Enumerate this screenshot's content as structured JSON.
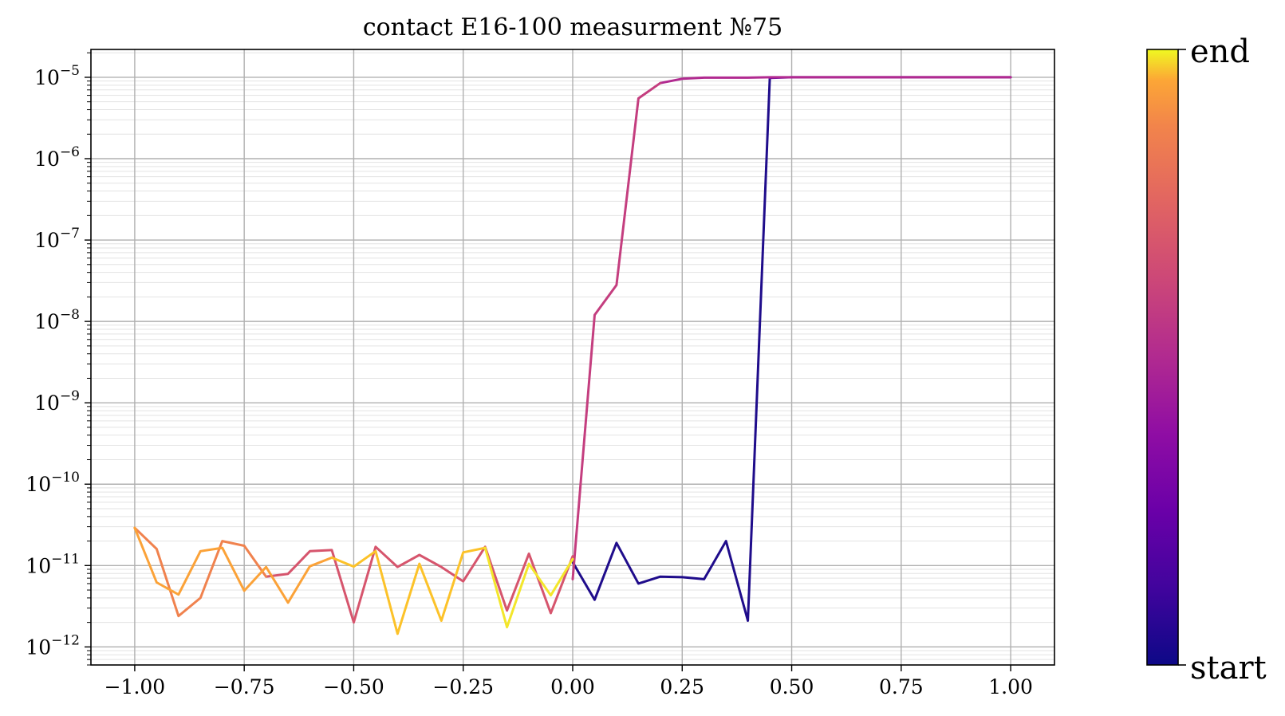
{
  "chart_data": {
    "type": "line",
    "title": "contact E16-100 measurment №75",
    "xlabel": "",
    "ylabel": "",
    "x_scale": "linear",
    "y_scale": "log",
    "xlim": [
      -1.1,
      1.1
    ],
    "ylim": [
      6e-13,
      2.2e-05
    ],
    "x_ticks": [
      -1.0,
      -0.75,
      -0.5,
      -0.25,
      0.0,
      0.25,
      0.5,
      0.75,
      1.0
    ],
    "x_tick_labels": [
      "−1.00",
      "−0.75",
      "−0.50",
      "−0.25",
      "0.00",
      "0.25",
      "0.50",
      "0.75",
      "1.00"
    ],
    "y_ticks": [
      {
        "value": 1e-12,
        "base": "10",
        "exp": "−12"
      },
      {
        "value": 1e-11,
        "base": "10",
        "exp": "−11"
      },
      {
        "value": 1e-10,
        "base": "10",
        "exp": "−10"
      },
      {
        "value": 1e-09,
        "base": "10",
        "exp": "−9"
      },
      {
        "value": 1e-08,
        "base": "10",
        "exp": "−8"
      },
      {
        "value": 1e-07,
        "base": "10",
        "exp": "−7"
      },
      {
        "value": 1e-06,
        "base": "10",
        "exp": "−6"
      },
      {
        "value": 1e-05,
        "base": "10",
        "exp": "−5"
      }
    ],
    "grid": true,
    "minor_grid": true,
    "colormap": "plasma",
    "colorbar": {
      "top_label": "end",
      "bottom_label": "start"
    },
    "segments": [
      {
        "name": "",
        "color": "#1f0c8b",
        "x": [
          0.0,
          0.05,
          0.1,
          0.15,
          0.2,
          0.25,
          0.3,
          0.35,
          0.4,
          0.45
        ],
        "y": [
          1.1e-11,
          3.8e-12,
          1.9e-11,
          6e-12,
          7.3e-12,
          7.2e-12,
          6.8e-12,
          2e-11,
          2.1e-12,
          9.8e-06
        ]
      },
      {
        "name": "",
        "color": "#6b07a5",
        "x": [
          0.45,
          0.5,
          0.55,
          0.6,
          0.65,
          0.7,
          0.75,
          0.8,
          0.85,
          0.9,
          0.95,
          1.0
        ],
        "y": [
          9.8e-06,
          1e-05,
          1e-05,
          1e-05,
          1e-05,
          1e-05,
          1e-05,
          1e-05,
          1e-05,
          1e-05,
          1e-05,
          1e-05
        ]
      },
      {
        "name": "",
        "color": "#b12a90",
        "x": [
          1.0,
          0.95,
          0.9,
          0.85,
          0.8,
          0.75,
          0.7,
          0.65,
          0.6,
          0.55,
          0.5,
          0.45,
          0.4,
          0.35,
          0.3,
          0.25,
          0.2
        ],
        "y": [
          1e-05,
          1e-05,
          1e-05,
          1e-05,
          1e-05,
          1e-05,
          1e-05,
          1e-05,
          1e-05,
          1e-05,
          1e-05,
          1e-05,
          9.9e-06,
          9.9e-06,
          9.9e-06,
          9.6e-06,
          8.5e-06
        ]
      },
      {
        "name": "",
        "color": "#c43e7f",
        "x": [
          0.2,
          0.15,
          0.1,
          0.05,
          0.0
        ],
        "y": [
          8.5e-06,
          5.5e-06,
          2.8e-08,
          1.2e-08,
          6.8e-12
        ]
      },
      {
        "name": "",
        "color": "#d6556d",
        "x": [
          0.0,
          -0.05,
          -0.1,
          -0.15,
          -0.2,
          -0.25,
          -0.3,
          -0.35,
          -0.4,
          -0.45,
          -0.5,
          -0.55,
          -0.6,
          -0.65,
          -0.7
        ],
        "y": [
          1.3e-11,
          2.6e-12,
          1.4e-11,
          2.8e-12,
          1.7e-11,
          6.4e-12,
          9.6e-12,
          1.35e-11,
          9.6e-12,
          1.7e-11,
          2e-12,
          1.55e-11,
          1.5e-11,
          7.9e-12,
          7.3e-12
        ]
      },
      {
        "name": "",
        "color": "#f0824e",
        "x": [
          -0.7,
          -0.75,
          -0.8,
          -0.85,
          -0.9,
          -0.95,
          -1.0
        ],
        "y": [
          7.3e-12,
          1.75e-11,
          2e-11,
          4e-12,
          2.4e-12,
          1.6e-11,
          2.9e-11
        ]
      },
      {
        "name": "",
        "color": "#fba238",
        "x": [
          -1.0,
          -0.95,
          -0.9,
          -0.85,
          -0.8,
          -0.75,
          -0.7,
          -0.65,
          -0.6,
          -0.55
        ],
        "y": [
          2.9e-11,
          6.2e-12,
          4.4e-12,
          1.5e-11,
          1.65e-11,
          4.9e-12,
          9.6e-12,
          3.5e-12,
          9.8e-12,
          1.25e-11
        ]
      },
      {
        "name": "",
        "color": "#fcc229",
        "x": [
          -0.55,
          -0.5,
          -0.45,
          -0.4,
          -0.35,
          -0.3,
          -0.25,
          -0.2
        ],
        "y": [
          1.25e-11,
          9.7e-12,
          1.5e-11,
          1.45e-12,
          1.05e-11,
          2.1e-12,
          1.45e-11,
          1.65e-11
        ]
      },
      {
        "name": "",
        "color": "#f3e62b",
        "x": [
          -0.2,
          -0.15,
          -0.1,
          -0.05,
          0.0
        ],
        "y": [
          1.65e-11,
          1.75e-12,
          1.05e-11,
          4.3e-12,
          1.2e-11
        ]
      }
    ]
  }
}
